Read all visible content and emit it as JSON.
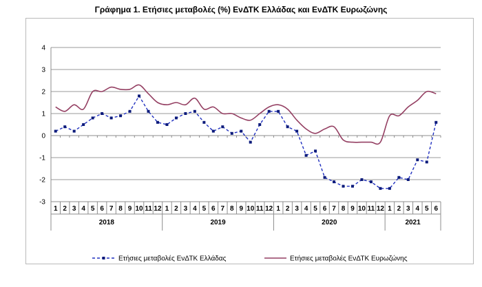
{
  "chart_data": {
    "type": "line",
    "title": "Γράφημα 1. Ετήσιες μεταβολές (%) ΕνΔΤΚ Ελλάδας και ΕνΔΤΚ Ευρωζώνης",
    "x": [
      "1",
      "2",
      "3",
      "4",
      "5",
      "6",
      "7",
      "8",
      "9",
      "10",
      "11",
      "12",
      "1",
      "2",
      "3",
      "4",
      "5",
      "6",
      "7",
      "8",
      "9",
      "10",
      "11",
      "12",
      "1",
      "2",
      "3",
      "4",
      "5",
      "6",
      "7",
      "8",
      "9",
      "10",
      "11",
      "12",
      "1",
      "2",
      "3",
      "4",
      "5",
      "6"
    ],
    "years": [
      {
        "label": "2018",
        "months": 12
      },
      {
        "label": "2019",
        "months": 12
      },
      {
        "label": "2020",
        "months": 12
      },
      {
        "label": "2021",
        "months": 6
      }
    ],
    "ylim": [
      -3,
      4
    ],
    "yticks": [
      "4",
      "3",
      "2",
      "1",
      "0",
      "-1",
      "-2",
      "-3"
    ],
    "grid": true,
    "legend_position": "bottom",
    "series": [
      {
        "name": "Ετήσιες μεταβολές ΕνΔΤΚ Ελλάδας",
        "color": "#1f2fbf",
        "style": "dashed-markers",
        "values": [
          0.2,
          0.4,
          0.2,
          0.5,
          0.8,
          1.0,
          0.8,
          0.9,
          1.1,
          1.8,
          1.1,
          0.6,
          0.5,
          0.8,
          1.0,
          1.1,
          0.6,
          0.2,
          0.4,
          0.1,
          0.2,
          -0.3,
          0.5,
          1.1,
          1.1,
          0.4,
          0.2,
          -0.9,
          -0.7,
          -1.9,
          -2.1,
          -2.3,
          -2.3,
          -2.0,
          -2.1,
          -2.4,
          -2.4,
          -1.9,
          -2.0,
          -1.1,
          -1.2,
          0.6
        ]
      },
      {
        "name": "Ετήσιες μεταβολές ΕνΔΤΚ Ευρωζώνης",
        "color": "#943f62",
        "style": "solid",
        "values": [
          1.3,
          1.1,
          1.4,
          1.2,
          2.0,
          2.0,
          2.2,
          2.1,
          2.1,
          2.3,
          1.9,
          1.5,
          1.4,
          1.5,
          1.4,
          1.7,
          1.2,
          1.3,
          1.0,
          1.0,
          0.8,
          0.7,
          1.0,
          1.3,
          1.4,
          1.2,
          0.7,
          0.3,
          0.1,
          0.3,
          0.4,
          -0.2,
          -0.3,
          -0.3,
          -0.3,
          -0.3,
          0.9,
          0.9,
          1.3,
          1.6,
          2.0,
          1.9
        ]
      }
    ]
  }
}
